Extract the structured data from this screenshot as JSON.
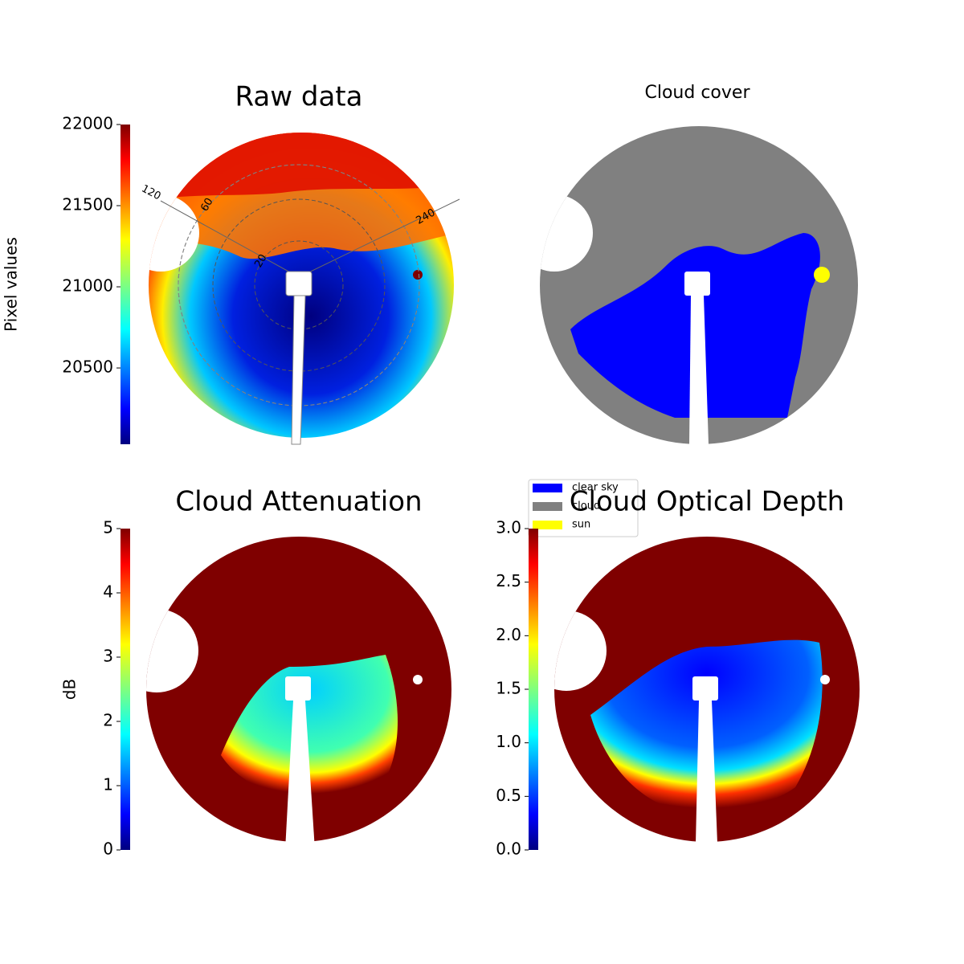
{
  "chart_data": [
    {
      "type": "image",
      "title": "Raw data",
      "ylabel": "Pixel values",
      "ylim": [
        20030,
        22000
      ],
      "yticks": [
        20500,
        21000,
        21500,
        22000
      ],
      "annotations": [
        "120",
        "60",
        "20",
        "240"
      ]
    },
    {
      "type": "image",
      "title": "Cloud cover",
      "legend": [
        {
          "name": "clear sky",
          "color": "#0000ff"
        },
        {
          "name": "cloud",
          "color": "#808080"
        },
        {
          "name": "sun",
          "color": "#ffff00"
        }
      ]
    },
    {
      "type": "image",
      "title": "Cloud Attenuation",
      "ylabel": "dB",
      "ylim": [
        0,
        5
      ],
      "yticks": [
        0,
        1,
        2,
        3,
        4,
        5
      ]
    },
    {
      "type": "image",
      "title": "Cloud Optical Depth",
      "ylim": [
        0,
        3
      ],
      "yticks": [
        {
          "value": 0,
          "label": "0.0"
        },
        0.5,
        {
          "value": 1,
          "label": "1.0"
        },
        1.5,
        {
          "value": 2,
          "label": "2.0"
        },
        2.5,
        {
          "value": 3,
          "label": "3.0"
        }
      ]
    }
  ]
}
